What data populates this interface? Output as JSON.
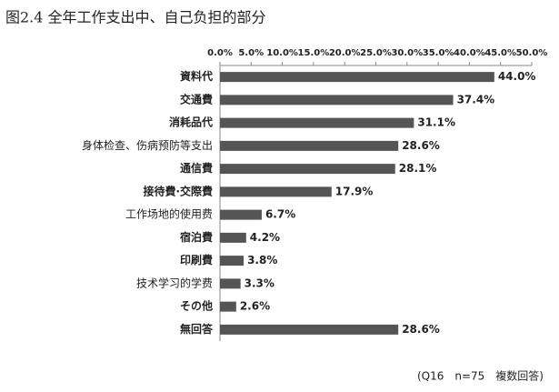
{
  "chart_data": {
    "type": "bar",
    "orientation": "horizontal",
    "title": "图2.4 全年工作支出中、自己负担的部分",
    "categories": [
      "資料代",
      "交通費",
      "消耗品代",
      "身体检查、伤病预防等支出",
      "通信費",
      "接待費·交際費",
      "工作场地的使用费",
      "宿泊費",
      "印刷費",
      "技术学习的学费",
      "その他",
      "無回答"
    ],
    "values": [
      44.0,
      37.4,
      31.1,
      28.6,
      28.1,
      17.9,
      6.7,
      4.2,
      3.8,
      3.3,
      2.6,
      28.6
    ],
    "value_labels": [
      "44.0%",
      "37.4%",
      "31.1%",
      "28.6%",
      "28.1%",
      "17.9%",
      "6.7%",
      "4.2%",
      "3.8%",
      "3.3%",
      "2.6%",
      "28.6%"
    ],
    "color": "#555555",
    "xlim": [
      0,
      50
    ],
    "xticks": [
      {
        "value": 0,
        "label": "0.0%"
      },
      {
        "value": 5,
        "label": "5.0%"
      },
      {
        "value": 10,
        "label": "10.0%"
      },
      {
        "value": 15,
        "label": "15.0%"
      },
      {
        "value": 20,
        "label": "20.0%"
      },
      {
        "value": 25,
        "label": "25.0%"
      },
      {
        "value": 30,
        "label": "30.0%"
      },
      {
        "value": 35,
        "label": "35.0%"
      },
      {
        "value": 40,
        "label": "40.0%"
      },
      {
        "value": 45,
        "label": "45.0%"
      },
      {
        "value": 50,
        "label": "50.0%"
      }
    ],
    "note": "(Q16　n=75　複数回答)"
  }
}
